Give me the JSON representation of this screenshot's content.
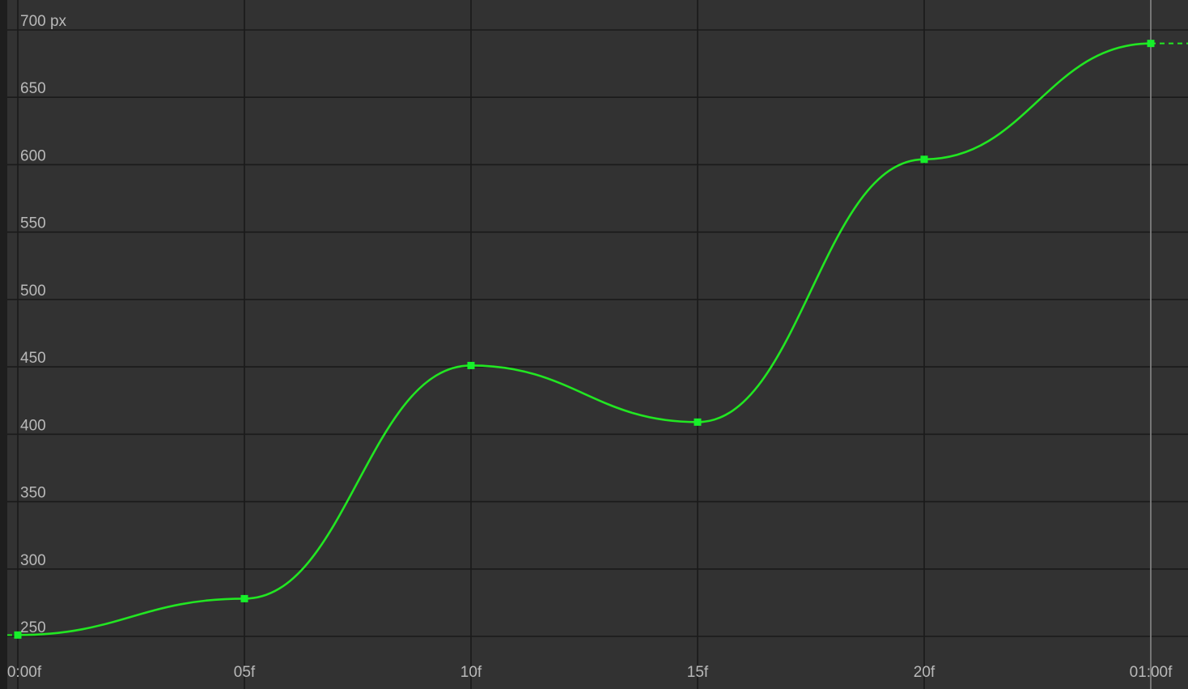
{
  "chart_data": {
    "type": "line",
    "ylabel_unit": "px",
    "y_ticks": [
      "700 px",
      "650",
      "600",
      "550",
      "500",
      "450",
      "400",
      "350",
      "300",
      "250"
    ],
    "y_tick_values": [
      700,
      650,
      600,
      550,
      500,
      450,
      400,
      350,
      300,
      250
    ],
    "x_ticks": [
      "0:00f",
      "05f",
      "10f",
      "15f",
      "20f",
      "01:00f"
    ],
    "x_tick_values": [
      0,
      5,
      10,
      15,
      20,
      25
    ],
    "xlim": [
      0,
      25
    ],
    "ylim": [
      250,
      700
    ],
    "grid": true,
    "series": [
      {
        "color": "#22e622",
        "x": [
          0,
          5,
          10,
          15,
          20,
          25
        ],
        "y": [
          251,
          278,
          451,
          409,
          604,
          690
        ]
      }
    ]
  }
}
